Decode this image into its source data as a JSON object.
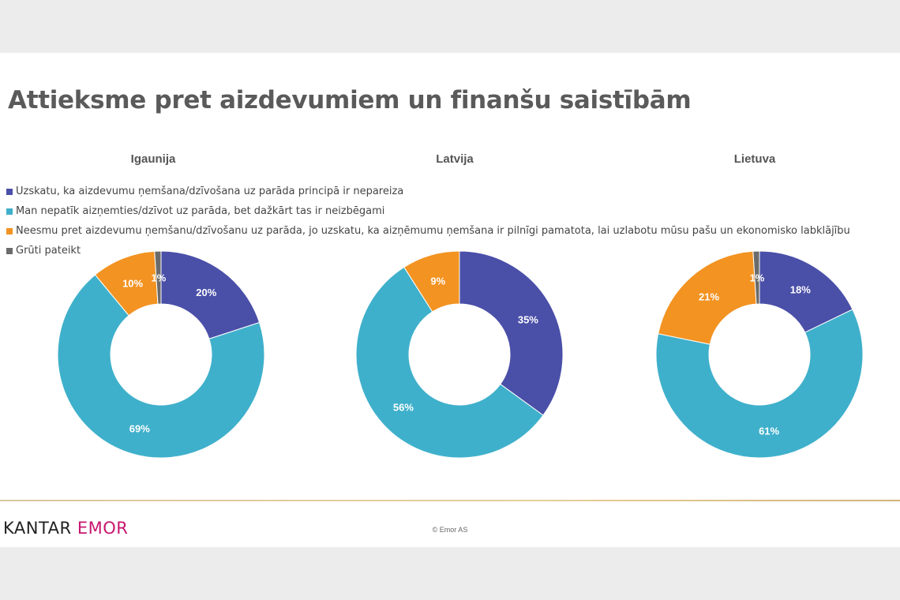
{
  "title": "Attieksme pret aizdevumiem un finanšu saistībām",
  "footer": {
    "logo_kantar": "KANTAR",
    "logo_emor": "EMOR",
    "copyright": "© Emor AS"
  },
  "colors": {
    "logo_accent": "#c8166f",
    "title": "#5a5a5a"
  },
  "chart_data": [
    {
      "type": "pie",
      "title": "Igaunija",
      "categories": [
        "Uzskatu, ka aizdevumu ņemšana/dzīvošana uz parāda principā ir nepareiza",
        "Man nepatīk aizņemties/dzīvot uz parāda, bet dažkārt tas ir neizbēgami",
        "Neesmu pret aizdevumu ņemšanu/dzīvošanu uz parāda, jo uzskatu, ka aizņēmumu ņemšana ir pilnīgi pamatota, lai uzlabotu mūsu pašu un ekonomisko labklājību",
        "Grūti pateikt"
      ],
      "values": [
        20,
        69,
        10,
        1
      ],
      "labels": [
        "20%",
        "69%",
        "10%",
        "1%"
      ],
      "colors": [
        "#4a4fa8",
        "#3fb0cb",
        "#f39322",
        "#6b6b6b"
      ],
      "legend": "top-left"
    },
    {
      "type": "pie",
      "title": "Latvija",
      "categories": [
        "Uzskatu, ka aizdevumu ņemšana/dzīvošana uz parāda principā ir nepareiza",
        "Man nepatīk aizņemties/dzīvot uz parāda, bet dažkārt tas ir neizbēgami",
        "Neesmu pret aizdevumu ņemšanu/dzīvošanu uz parāda, jo uzskatu, ka aizņēmumu ņemšana ir pilnīgi pamatota, lai uzlabotu mūsu pašu un ekonomisko labklājību",
        "Grūti pateikt"
      ],
      "values": [
        35,
        56,
        9,
        0
      ],
      "labels": [
        "35%",
        "56%",
        "9%",
        ""
      ],
      "colors": [
        "#4a4fa8",
        "#3fb0cb",
        "#f39322",
        "#6b6b6b"
      ]
    },
    {
      "type": "pie",
      "title": "Lietuva",
      "categories": [
        "Uzskatu, ka aizdevumu ņemšana/dzīvošana uz parāda principā ir nepareiza",
        "Man nepatīk aizņemties/dzīvot uz parāda, bet dažkārt tas ir neizbēgami",
        "Neesmu pret aizdevumu ņemšanu/dzīvošanu uz parāda, jo uzskatu, ka aizņēmumu ņemšana ir pilnīgi pamatota, lai uzlabotu mūsu pašu un ekonomisko labklājību",
        "Grūti pateikt"
      ],
      "values": [
        18,
        61,
        21,
        1
      ],
      "labels": [
        "18%",
        "61%",
        "21%",
        "1%"
      ],
      "colors": [
        "#4a4fa8",
        "#3fb0cb",
        "#f39322",
        "#6b6b6b"
      ]
    }
  ]
}
